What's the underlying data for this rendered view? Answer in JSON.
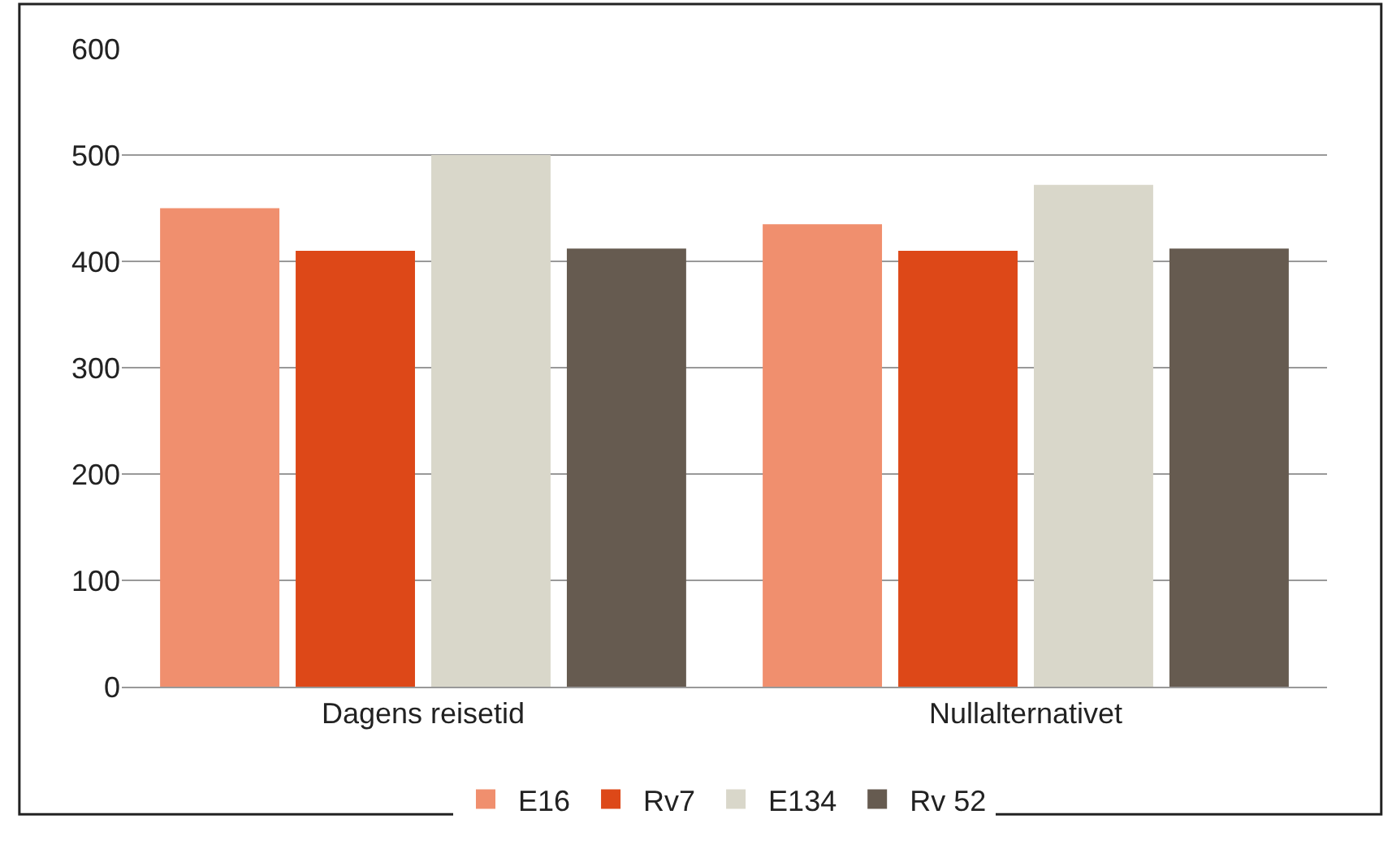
{
  "chart_data": {
    "type": "bar",
    "categories": [
      "Dagens reisetid",
      "Nullalternativet"
    ],
    "series": [
      {
        "name": "E16",
        "color": "#f08f6e",
        "values": [
          450,
          435
        ]
      },
      {
        "name": "Rv7",
        "color": "#dd4818",
        "values": [
          410,
          410
        ]
      },
      {
        "name": "E134",
        "color": "#d9d7ca",
        "values": [
          500,
          472
        ]
      },
      {
        "name": "Rv 52",
        "color": "#665b50",
        "values": [
          412,
          412
        ]
      }
    ],
    "ylim": [
      0,
      600
    ],
    "yticks": [
      0,
      100,
      200,
      300,
      400,
      500,
      600
    ],
    "grid": "y",
    "legend": "bottom"
  }
}
